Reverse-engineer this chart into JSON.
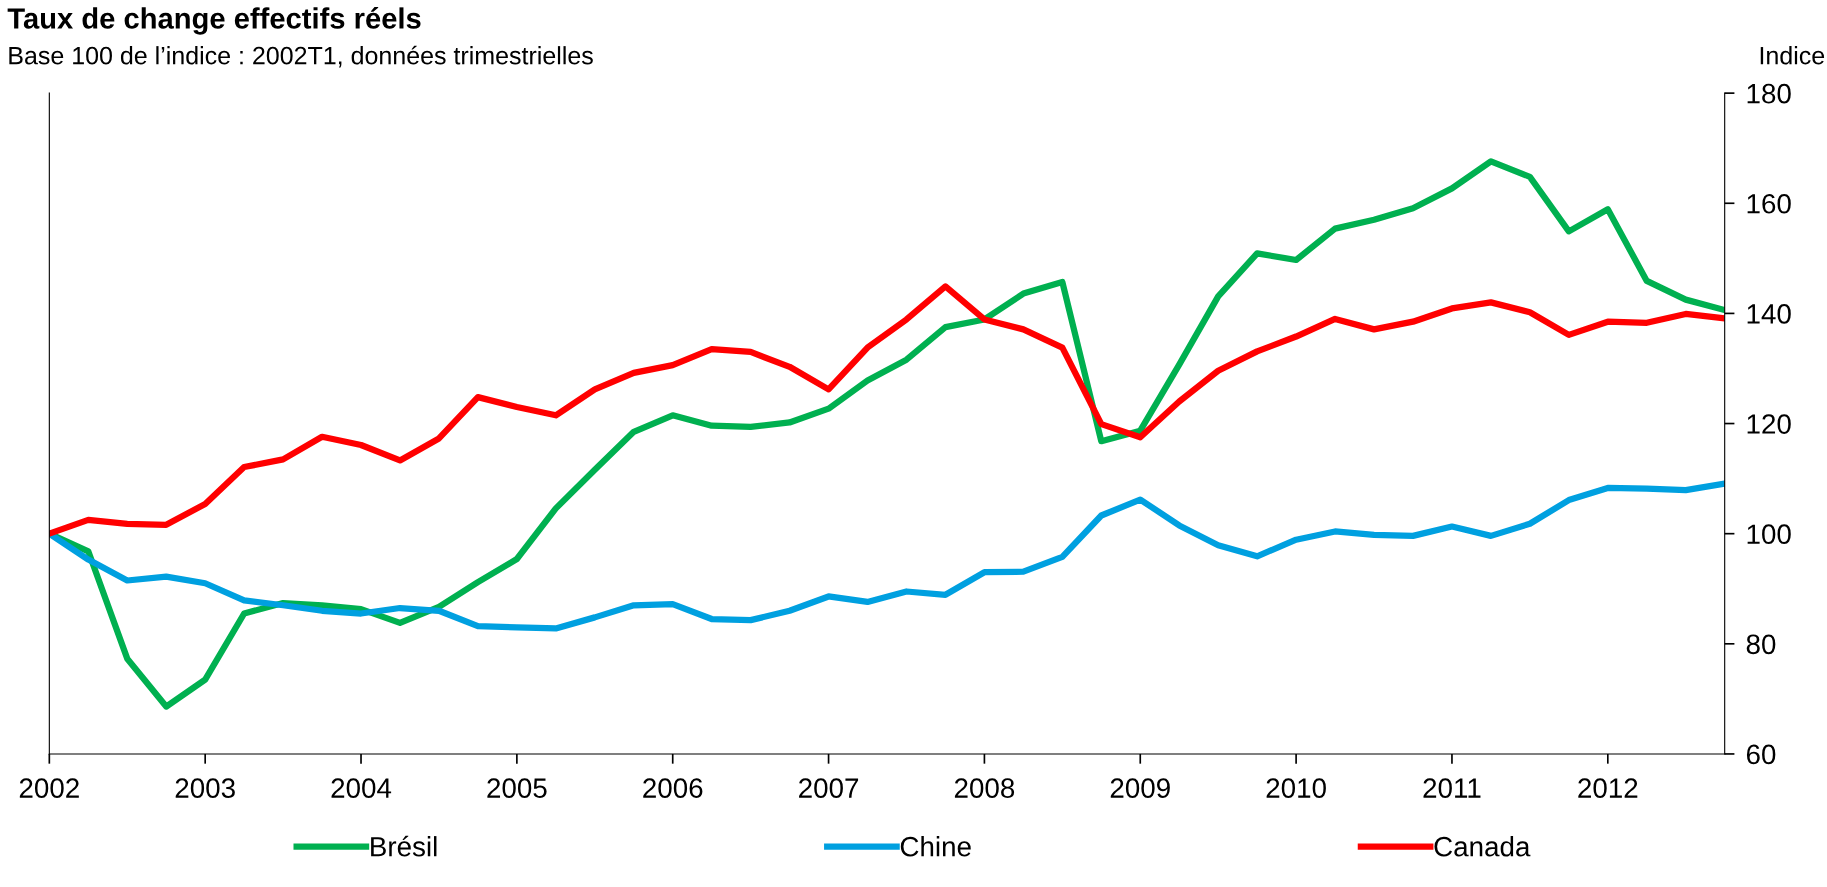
{
  "chart_data": {
    "type": "line",
    "title": "Taux de change effectifs réels",
    "subtitle": "Base 100 de l’indice : 2002T1, données trimestrielles",
    "ylabel": "Indice",
    "x": [
      2002,
      2002.25,
      2002.5,
      2002.75,
      2003,
      2003.25,
      2003.5,
      2003.75,
      2004,
      2004.25,
      2004.5,
      2004.75,
      2005,
      2005.25,
      2005.5,
      2005.75,
      2006,
      2006.25,
      2006.5,
      2006.75,
      2007,
      2007.25,
      2007.5,
      2007.75,
      2008,
      2008.25,
      2008.5,
      2008.75,
      2009,
      2009.25,
      2009.5,
      2009.75,
      2010,
      2010.25,
      2010.5,
      2010.75,
      2011,
      2011.25,
      2011.5,
      2011.75,
      2012,
      2012.25,
      2012.5,
      2012.75
    ],
    "series": [
      {
        "name": "Brésil",
        "color": "#00b050",
        "values": [
          100,
          96.8,
          77.3,
          68.6,
          73.5,
          85.5,
          87.4,
          87,
          86.3,
          83.8,
          86.7,
          91.2,
          95.4,
          104.6,
          111.6,
          118.5,
          121.5,
          119.6,
          119.4,
          120.2,
          122.7,
          127.8,
          131.6,
          137.5,
          138.9,
          143.6,
          145.7,
          116.8,
          118.7,
          130.7,
          143.1,
          150.9,
          149.7,
          155.4,
          157,
          159.1,
          162.7,
          167.6,
          164.8,
          154.9,
          158.9,
          145.9,
          142.5,
          140.6
        ]
      },
      {
        "name": "Chine",
        "color": "#00a0e0",
        "values": [
          100,
          95.3,
          91.5,
          92.2,
          91,
          87.9,
          87,
          86,
          85.5,
          86.5,
          86,
          83.2,
          83,
          82.8,
          84.8,
          87,
          87.2,
          84.5,
          84.3,
          86,
          88.6,
          87.6,
          89.5,
          88.9,
          93,
          93.1,
          95.8,
          103.3,
          106.2,
          101.5,
          97.9,
          95.9,
          98.9,
          100.4,
          99.8,
          99.6,
          101.3,
          99.6,
          101.8,
          106.1,
          108.3,
          108.2,
          107.9,
          109.1
        ]
      },
      {
        "name": "Canada",
        "color": "#ff0000",
        "values": [
          100,
          102.5,
          101.8,
          101.6,
          105.4,
          112.1,
          113.5,
          117.6,
          116.1,
          113.3,
          117.3,
          124.8,
          123,
          121.5,
          126.2,
          129.2,
          130.6,
          133.5,
          133,
          130.3,
          126.2,
          133.8,
          138.9,
          144.9,
          138.9,
          137.1,
          133.8,
          119.9,
          117.5,
          124,
          129.6,
          133.1,
          135.8,
          139,
          137.1,
          138.5,
          140.9,
          142,
          140.2,
          136.1,
          138.5,
          138.3,
          139.9,
          139.1
        ]
      }
    ],
    "xlim": [
      2002,
      2012.75
    ],
    "xticks": [
      2002,
      2003,
      2004,
      2005,
      2006,
      2007,
      2008,
      2009,
      2010,
      2011,
      2012
    ],
    "ylim": [
      60,
      180
    ],
    "yticks": [
      60,
      80,
      100,
      120,
      140,
      160,
      180
    ],
    "grid": false,
    "legend": "bottom",
    "marker": "none",
    "line_style": "solid"
  }
}
